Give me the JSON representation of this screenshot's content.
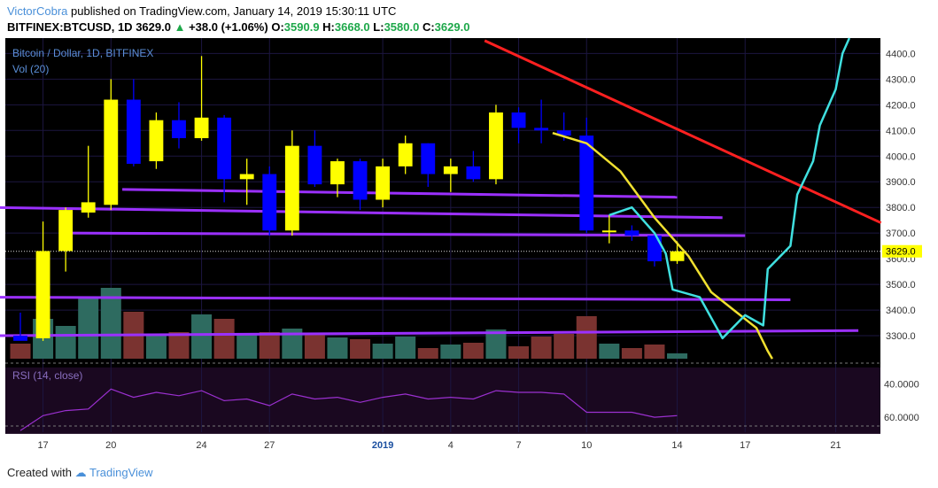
{
  "header": {
    "author": "VictorCobra",
    "published": "published on TradingView.com, January 14, 2019 15:30:11 UTC",
    "symbol": "BITFINEX:BTCUSD, 1D",
    "price": "3629.0",
    "change": "+38.0 (+1.06%)",
    "o_label": "O:",
    "o": "3590.9",
    "h_label": "H:",
    "h": "3668.0",
    "l_label": "L:",
    "l": "3580.0",
    "c_label": "C:",
    "c": "3629.0"
  },
  "footer": {
    "created_with": "Created with",
    "brand": "TradingView"
  },
  "colors": {
    "background": "#000000",
    "up_candle": "#ffff00",
    "down_candle": "#0000ff",
    "support_line": "#9b30ff",
    "trend_line": "#ff2020",
    "projection_yellow": "#f0e030",
    "projection_cyan": "#40e0e0",
    "rsi_line": "#9b30d0",
    "vol_up": "#2e6b60",
    "vol_down": "#7a3330"
  },
  "chart_data": {
    "type": "candlestick",
    "title": "Bitcoin / Dollar, 1D, BITFINEX",
    "volume_label": "Vol (20)",
    "rsi_label": "RSI (14, close)",
    "ylim": [
      3200,
      4460
    ],
    "yticks": [
      3300,
      3400,
      3500,
      3600,
      3700,
      3800,
      3900,
      4000,
      4100,
      4200,
      4300,
      4400
    ],
    "rsi_ylim": [
      31,
      71
    ],
    "rsi_ticks": [
      "40.0000",
      "60.0000"
    ],
    "last_price": "3629.0",
    "x_ticks": [
      {
        "label": "17",
        "day": 1
      },
      {
        "label": "20",
        "day": 4
      },
      {
        "label": "24",
        "day": 8
      },
      {
        "label": "27",
        "day": 11
      },
      {
        "label": "2019",
        "day": 16
      },
      {
        "label": "4",
        "day": 19
      },
      {
        "label": "7",
        "day": 22
      },
      {
        "label": "10",
        "day": 25
      },
      {
        "label": "14",
        "day": 29
      },
      {
        "label": "17",
        "day": 32
      },
      {
        "label": "21",
        "day": 36
      }
    ],
    "candles": [
      {
        "day": 0,
        "date": "2018-12-16",
        "o": 3300,
        "h": 3390,
        "l": 3290,
        "c": 3280
      },
      {
        "day": 1,
        "date": "2018-12-17",
        "o": 3290,
        "h": 3745,
        "l": 3280,
        "c": 3630
      },
      {
        "day": 2,
        "date": "2018-12-18",
        "o": 3630,
        "h": 3800,
        "l": 3550,
        "c": 3790
      },
      {
        "day": 3,
        "date": "2018-12-19",
        "o": 3780,
        "h": 4040,
        "l": 3760,
        "c": 3820
      },
      {
        "day": 4,
        "date": "2018-12-20",
        "o": 3810,
        "h": 4300,
        "l": 3790,
        "c": 4220
      },
      {
        "day": 5,
        "date": "2018-12-21",
        "o": 4220,
        "h": 4300,
        "l": 3960,
        "c": 3970
      },
      {
        "day": 6,
        "date": "2018-12-22",
        "o": 3980,
        "h": 4170,
        "l": 3950,
        "c": 4140
      },
      {
        "day": 7,
        "date": "2018-12-23",
        "o": 4140,
        "h": 4210,
        "l": 4030,
        "c": 4070
      },
      {
        "day": 8,
        "date": "2018-12-24",
        "o": 4070,
        "h": 4390,
        "l": 4060,
        "c": 4150
      },
      {
        "day": 9,
        "date": "2018-12-25",
        "o": 4150,
        "h": 4160,
        "l": 3820,
        "c": 3910
      },
      {
        "day": 10,
        "date": "2018-12-26",
        "o": 3910,
        "h": 3990,
        "l": 3810,
        "c": 3930
      },
      {
        "day": 11,
        "date": "2018-12-27",
        "o": 3930,
        "h": 3960,
        "l": 3690,
        "c": 3710
      },
      {
        "day": 12,
        "date": "2018-12-28",
        "o": 3710,
        "h": 4100,
        "l": 3690,
        "c": 4040
      },
      {
        "day": 13,
        "date": "2018-12-29",
        "o": 4040,
        "h": 4100,
        "l": 3880,
        "c": 3890
      },
      {
        "day": 14,
        "date": "2018-12-30",
        "o": 3890,
        "h": 3990,
        "l": 3840,
        "c": 3980
      },
      {
        "day": 15,
        "date": "2018-12-31",
        "o": 3980,
        "h": 3990,
        "l": 3790,
        "c": 3830
      },
      {
        "day": 16,
        "date": "2019-01-01",
        "o": 3830,
        "h": 3990,
        "l": 3800,
        "c": 3960
      },
      {
        "day": 17,
        "date": "2019-01-02",
        "o": 3960,
        "h": 4080,
        "l": 3930,
        "c": 4050
      },
      {
        "day": 18,
        "date": "2019-01-03",
        "o": 4050,
        "h": 4050,
        "l": 3880,
        "c": 3930
      },
      {
        "day": 19,
        "date": "2019-01-04",
        "o": 3930,
        "h": 3990,
        "l": 3860,
        "c": 3960
      },
      {
        "day": 20,
        "date": "2019-01-05",
        "o": 3960,
        "h": 4020,
        "l": 3900,
        "c": 3910
      },
      {
        "day": 21,
        "date": "2019-01-06",
        "o": 3910,
        "h": 4200,
        "l": 3890,
        "c": 4170
      },
      {
        "day": 22,
        "date": "2019-01-07",
        "o": 4170,
        "h": 4190,
        "l": 4050,
        "c": 4110
      },
      {
        "day": 23,
        "date": "2019-01-08",
        "o": 4110,
        "h": 4220,
        "l": 4050,
        "c": 4100
      },
      {
        "day": 24,
        "date": "2019-01-09",
        "o": 4100,
        "h": 4170,
        "l": 4060,
        "c": 4080
      },
      {
        "day": 25,
        "date": "2019-01-10",
        "o": 4080,
        "h": 4150,
        "l": 3700,
        "c": 3710
      },
      {
        "day": 26,
        "date": "2019-01-11",
        "o": 3710,
        "h": 3770,
        "l": 3660,
        "c": 3710
      },
      {
        "day": 27,
        "date": "2019-01-12",
        "o": 3710,
        "h": 3730,
        "l": 3670,
        "c": 3690
      },
      {
        "day": 28,
        "date": "2019-01-13",
        "o": 3690,
        "h": 3700,
        "l": 3570,
        "c": 3590
      },
      {
        "day": 29,
        "date": "2019-01-14",
        "o": 3591,
        "h": 3668,
        "l": 3580,
        "c": 3629
      }
    ],
    "volume": [
      {
        "day": 0,
        "v": 0.17,
        "dir": "down"
      },
      {
        "day": 1,
        "v": 0.45,
        "dir": "up"
      },
      {
        "day": 2,
        "v": 0.37,
        "dir": "up"
      },
      {
        "day": 3,
        "v": 0.68,
        "dir": "up"
      },
      {
        "day": 4,
        "v": 0.8,
        "dir": "up"
      },
      {
        "day": 5,
        "v": 0.53,
        "dir": "down"
      },
      {
        "day": 6,
        "v": 0.27,
        "dir": "up"
      },
      {
        "day": 7,
        "v": 0.3,
        "dir": "down"
      },
      {
        "day": 8,
        "v": 0.5,
        "dir": "up"
      },
      {
        "day": 9,
        "v": 0.45,
        "dir": "down"
      },
      {
        "day": 10,
        "v": 0.27,
        "dir": "up"
      },
      {
        "day": 11,
        "v": 0.3,
        "dir": "down"
      },
      {
        "day": 12,
        "v": 0.34,
        "dir": "up"
      },
      {
        "day": 13,
        "v": 0.27,
        "dir": "down"
      },
      {
        "day": 14,
        "v": 0.24,
        "dir": "up"
      },
      {
        "day": 15,
        "v": 0.22,
        "dir": "down"
      },
      {
        "day": 16,
        "v": 0.17,
        "dir": "up"
      },
      {
        "day": 17,
        "v": 0.25,
        "dir": "up"
      },
      {
        "day": 18,
        "v": 0.12,
        "dir": "down"
      },
      {
        "day": 19,
        "v": 0.16,
        "dir": "up"
      },
      {
        "day": 20,
        "v": 0.18,
        "dir": "down"
      },
      {
        "day": 21,
        "v": 0.33,
        "dir": "up"
      },
      {
        "day": 22,
        "v": 0.14,
        "dir": "down"
      },
      {
        "day": 23,
        "v": 0.25,
        "dir": "down"
      },
      {
        "day": 24,
        "v": 0.28,
        "dir": "down"
      },
      {
        "day": 25,
        "v": 0.48,
        "dir": "down"
      },
      {
        "day": 26,
        "v": 0.17,
        "dir": "up"
      },
      {
        "day": 27,
        "v": 0.12,
        "dir": "down"
      },
      {
        "day": 28,
        "v": 0.16,
        "dir": "down"
      },
      {
        "day": 29,
        "v": 0.06,
        "dir": "up"
      }
    ],
    "rsi": [
      {
        "day": 0,
        "v": 32
      },
      {
        "day": 1,
        "v": 41
      },
      {
        "day": 2,
        "v": 44
      },
      {
        "day": 3,
        "v": 45
      },
      {
        "day": 4,
        "v": 57
      },
      {
        "day": 5,
        "v": 52
      },
      {
        "day": 6,
        "v": 55
      },
      {
        "day": 7,
        "v": 53
      },
      {
        "day": 8,
        "v": 56
      },
      {
        "day": 9,
        "v": 50
      },
      {
        "day": 10,
        "v": 51
      },
      {
        "day": 11,
        "v": 47
      },
      {
        "day": 12,
        "v": 54
      },
      {
        "day": 13,
        "v": 51
      },
      {
        "day": 14,
        "v": 52
      },
      {
        "day": 15,
        "v": 49
      },
      {
        "day": 16,
        "v": 52
      },
      {
        "day": 17,
        "v": 54
      },
      {
        "day": 18,
        "v": 51
      },
      {
        "day": 19,
        "v": 52
      },
      {
        "day": 20,
        "v": 51
      },
      {
        "day": 21,
        "v": 56
      },
      {
        "day": 22,
        "v": 55
      },
      {
        "day": 23,
        "v": 55
      },
      {
        "day": 24,
        "v": 54
      },
      {
        "day": 25,
        "v": 43
      },
      {
        "day": 26,
        "v": 43
      },
      {
        "day": 27,
        "v": 43
      },
      {
        "day": 28,
        "v": 40
      },
      {
        "day": 29,
        "v": 41
      }
    ],
    "support_lines": [
      {
        "d1": -1.5,
        "p1": 3800,
        "d2": 31.0,
        "p2": 3760
      },
      {
        "d1": 4.5,
        "p1": 3870,
        "d2": 29.0,
        "p2": 3840
      },
      {
        "d1": 2.0,
        "p1": 3700,
        "d2": 32.0,
        "p2": 3690
      },
      {
        "d1": -1.5,
        "p1": 3450,
        "d2": 34.0,
        "p2": 3440
      },
      {
        "d1": -1.5,
        "p1": 3300,
        "d2": 37.0,
        "p2": 3320
      }
    ],
    "trend_line": {
      "d1": 20.5,
      "p1": 4450,
      "d2": 38.0,
      "p2": 3740
    },
    "projection_yellow": [
      {
        "d": 23.5,
        "p": 4090
      },
      {
        "d": 25.0,
        "p": 4050
      },
      {
        "d": 26.5,
        "p": 3940
      },
      {
        "d": 28.0,
        "p": 3760
      },
      {
        "d": 29.5,
        "p": 3610
      },
      {
        "d": 30.5,
        "p": 3470
      },
      {
        "d": 31.5,
        "p": 3400
      },
      {
        "d": 32.5,
        "p": 3330
      },
      {
        "d": 33.0,
        "p": 3240
      },
      {
        "d": 33.2,
        "p": 3210
      }
    ],
    "projection_cyan": [
      {
        "d": 26.0,
        "p": 3770
      },
      {
        "d": 27.0,
        "p": 3800
      },
      {
        "d": 28.0,
        "p": 3700
      },
      {
        "d": 28.5,
        "p": 3620
      },
      {
        "d": 28.8,
        "p": 3480
      },
      {
        "d": 30.0,
        "p": 3450
      },
      {
        "d": 31.0,
        "p": 3290
      },
      {
        "d": 32.0,
        "p": 3380
      },
      {
        "d": 32.8,
        "p": 3340
      },
      {
        "d": 33.0,
        "p": 3560
      },
      {
        "d": 34.0,
        "p": 3650
      },
      {
        "d": 34.3,
        "p": 3850
      },
      {
        "d": 35.0,
        "p": 3980
      },
      {
        "d": 35.3,
        "p": 4120
      },
      {
        "d": 36.0,
        "p": 4260
      },
      {
        "d": 36.3,
        "p": 4400
      },
      {
        "d": 36.6,
        "p": 4460
      }
    ]
  }
}
